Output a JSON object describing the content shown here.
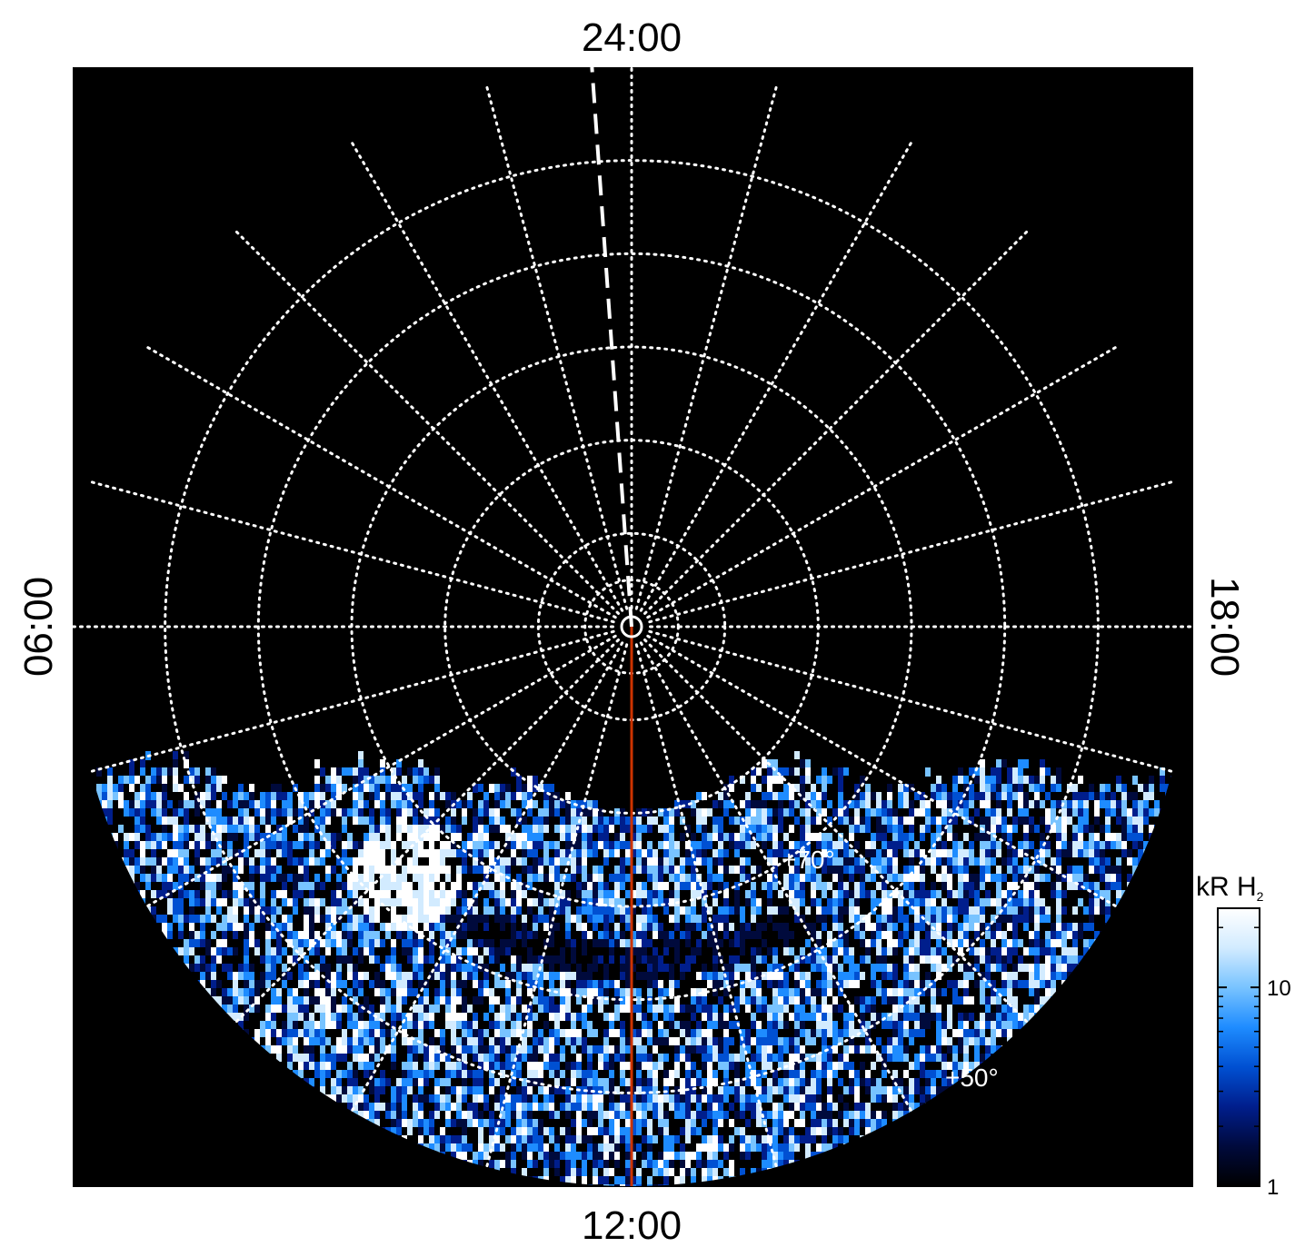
{
  "chart_data": {
    "type": "heatmap",
    "projection": "polar",
    "description_units": "kR H2 auroral emission, north polar projection",
    "local_time_labels": {
      "top": "24:00",
      "bottom": "12:00",
      "left": "06:00",
      "right": "18:00"
    },
    "latitude_labels": [
      {
        "text": "+70°",
        "value": 70
      },
      {
        "text": "+50°",
        "value": 50
      }
    ],
    "latitude_rings": [
      90,
      85,
      80,
      70,
      60,
      50
    ],
    "meridian_step_hours": 1,
    "pole_marker": true,
    "red_meridian_local_time": "12:00",
    "dashed_meridian_local_time": "00:15",
    "dashed_meridian_latitude_range": [
      65,
      90
    ],
    "data_coverage_note": "observed region lies on dayside below the 09:00–15:00 cut",
    "colorbar": {
      "title": "kR H",
      "title_subscript": "2",
      "scale": "log",
      "range": [
        1,
        25
      ],
      "ticks": [
        {
          "value": 1,
          "label": "1"
        },
        {
          "value": 10,
          "label": "10"
        }
      ],
      "colors": [
        "#000000",
        "#000a3c",
        "#001e8c",
        "#0050d2",
        "#1e8cff",
        "#78c3ff",
        "#d2ebff",
        "#ffffff"
      ]
    },
    "colors": {
      "background": "#000000",
      "grid": "#ffffff",
      "red_meridian": "#cc3300",
      "dashed_meridian": "#ffffff"
    }
  }
}
